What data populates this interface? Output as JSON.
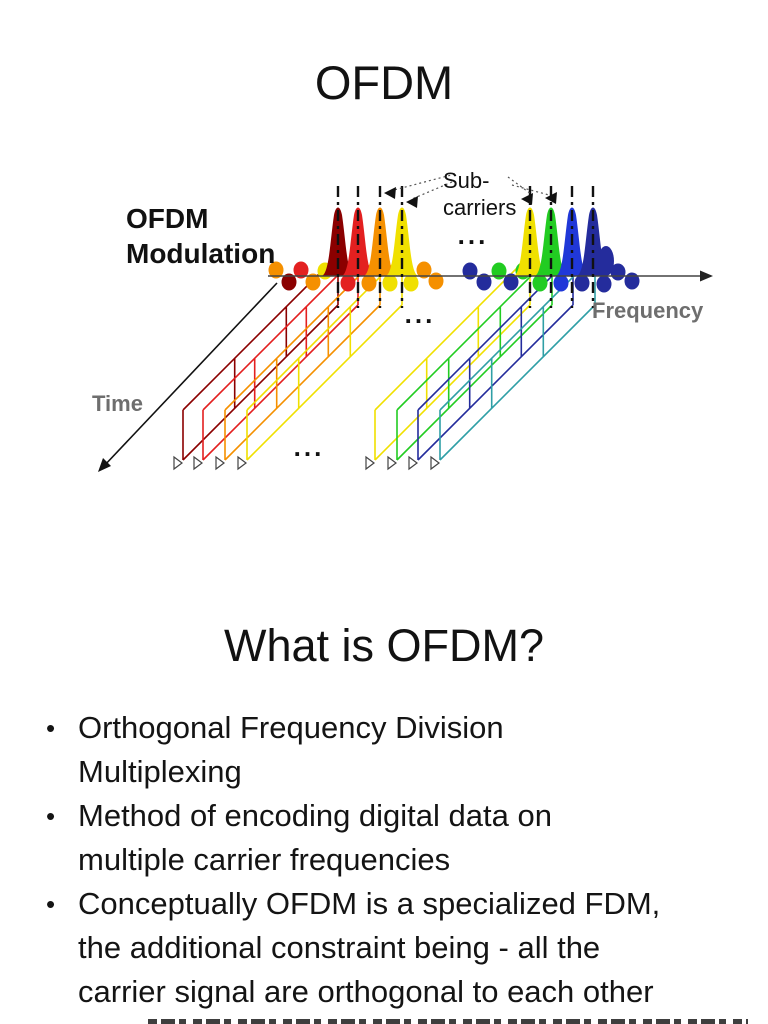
{
  "slide1": {
    "title": "OFDM"
  },
  "diagram": {
    "labels": {
      "modulation_line1": "OFDM",
      "modulation_line2": "Modulation",
      "subcarriers_line1": "Sub-",
      "subcarriers_line2": "carriers",
      "frequency": "Frequency",
      "time": "Time",
      "dots": "..."
    },
    "axis_color": "#444444",
    "label_gray": "#6e6e6e",
    "peaks": {
      "left": {
        "centers": [
          338,
          358,
          380,
          402
        ],
        "colors": [
          "#8B0000",
          "#E32020",
          "#F59000",
          "#F0E000"
        ]
      },
      "right": {
        "centers": [
          530,
          551,
          572,
          593
        ],
        "colors": [
          "#F0E000",
          "#22CC22",
          "#2038D8",
          "#242C9C"
        ]
      }
    },
    "bands": {
      "left": {
        "bottom_x": [
          183,
          203,
          225,
          247
        ],
        "colors": [
          "#8B0000",
          "#E32020",
          "#F59000",
          "#F0E000"
        ]
      },
      "right": {
        "bottom_x": [
          375,
          397,
          418,
          440
        ],
        "colors": [
          "#F0E000",
          "#22CC22",
          "#242C9C",
          "#2F9FA6"
        ]
      }
    },
    "side_lobes": [
      [
        276,
        270,
        "#F59000"
      ],
      [
        289,
        282,
        "#8B0000"
      ],
      [
        301,
        270,
        "#E32020"
      ],
      [
        313,
        282,
        "#F59000"
      ],
      [
        325,
        271,
        "#F0E000"
      ],
      [
        348,
        283,
        "#E32020"
      ],
      [
        369,
        283,
        "#F59000"
      ],
      [
        390,
        283,
        "#F0E000"
      ],
      [
        411,
        283,
        "#F0E000"
      ],
      [
        424,
        270,
        "#F59000"
      ],
      [
        436,
        281,
        "#F59000"
      ],
      [
        470,
        271,
        "#242C9C"
      ],
      [
        484,
        282,
        "#242C9C"
      ],
      [
        499,
        271,
        "#22CC22"
      ],
      [
        511,
        282,
        "#242C9C"
      ],
      [
        523,
        271,
        "#22CC22"
      ],
      [
        540,
        283,
        "#22CC22"
      ],
      [
        561,
        283,
        "#2038D8"
      ],
      [
        582,
        283,
        "#242C9C"
      ],
      [
        604,
        284,
        "#242C9C"
      ],
      [
        618,
        272,
        "#242C9C"
      ],
      [
        632,
        281,
        "#242C9C"
      ]
    ]
  },
  "slide2": {
    "title": "What is OFDM?",
    "bullet_char": "•",
    "bullets": [
      {
        "lines": [
          "Orthogonal Frequency Division",
          "Multiplexing"
        ]
      },
      {
        "lines": [
          "Method of encoding digital data on",
          "multiple carrier frequencies"
        ]
      },
      {
        "lines": [
          "Conceptually OFDM is a specialized FDM,",
          "the additional constraint being - all the",
          "carrier signal are orthogonal to each other"
        ]
      }
    ]
  }
}
